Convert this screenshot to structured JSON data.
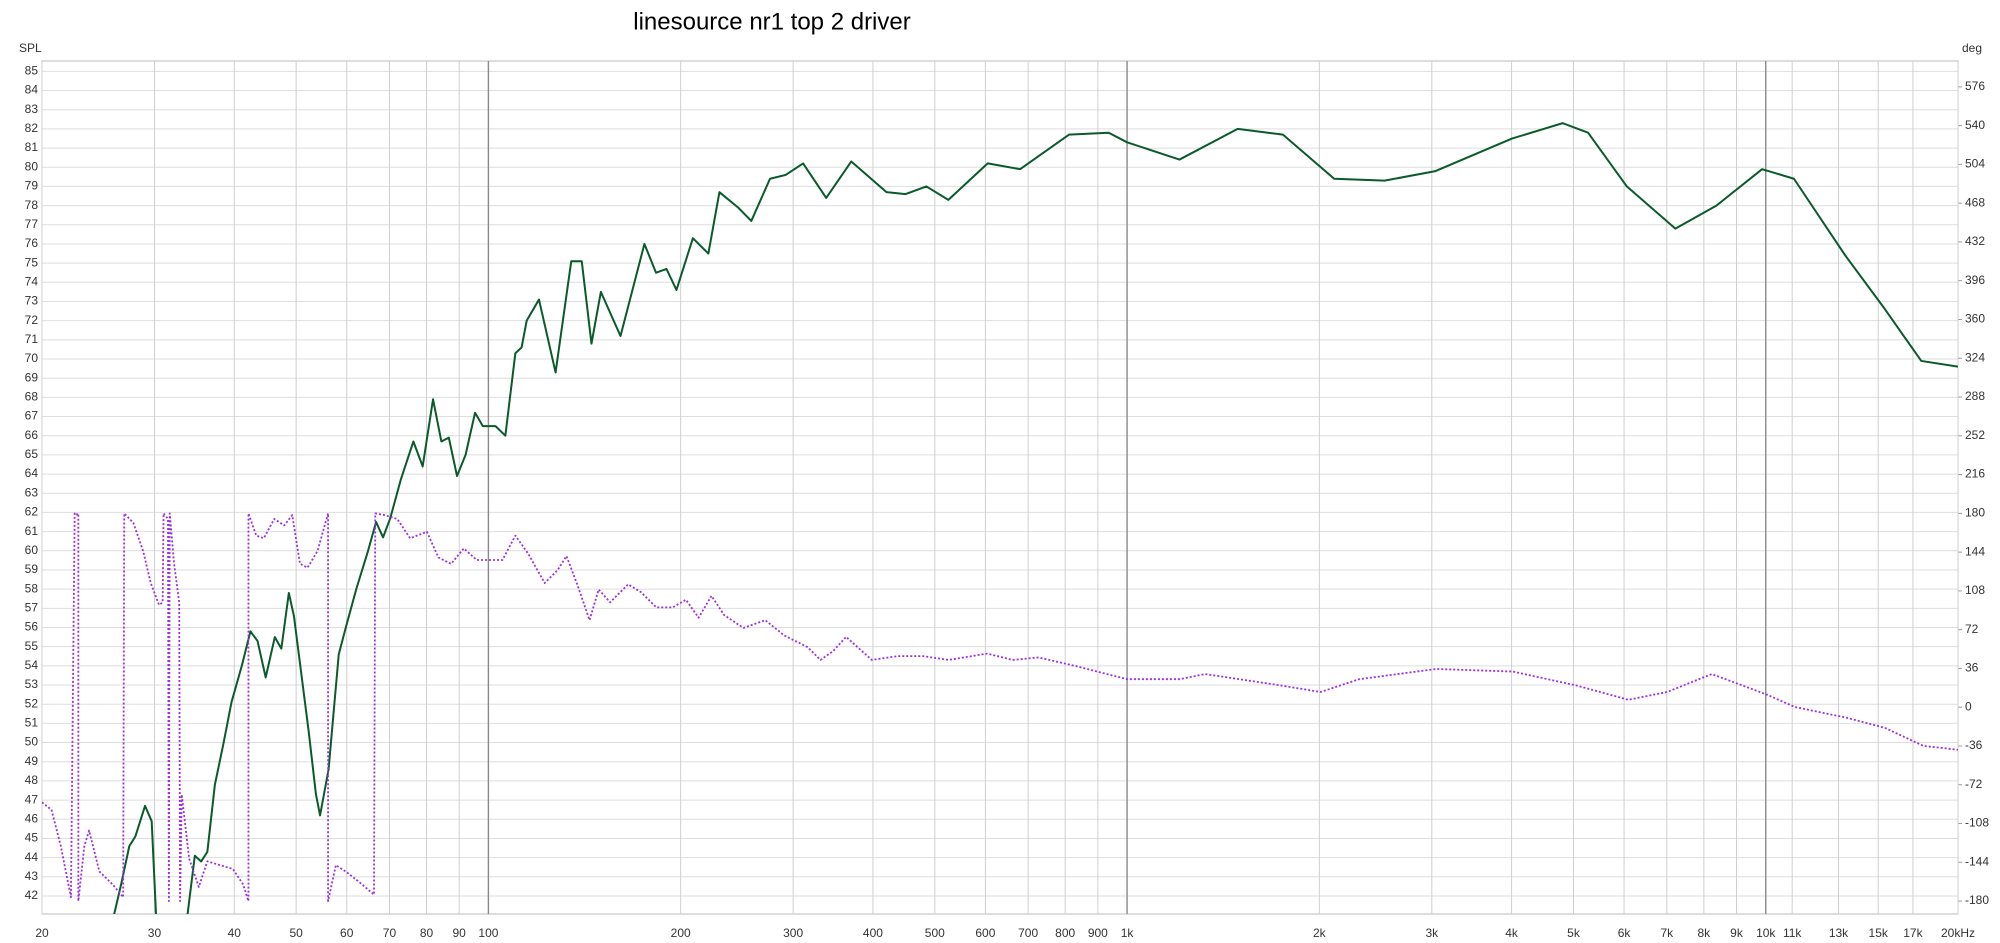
{
  "chart_data": {
    "type": "line",
    "title": "linesource nr1 top 2 driver",
    "ylabel": "SPL",
    "y2label": "deg",
    "xscale": "log",
    "grid": true,
    "xlim": [
      20,
      20000
    ],
    "ylim": [
      41.06,
      85.54
    ],
    "y2lim": [
      -192,
      600
    ],
    "xticks": [
      20,
      30,
      40,
      50,
      60,
      70,
      80,
      90,
      100,
      200,
      300,
      400,
      500,
      600,
      700,
      800,
      900,
      {
        "value": 1000,
        "label": "1k"
      },
      {
        "value": 2000,
        "label": "2k"
      },
      {
        "value": 3000,
        "label": "3k"
      },
      {
        "value": 4000,
        "label": "4k"
      },
      {
        "value": 5000,
        "label": "5k"
      },
      {
        "value": 6000,
        "label": "6k"
      },
      {
        "value": 7000,
        "label": "7k"
      },
      {
        "value": 8000,
        "label": "8k"
      },
      {
        "value": 9000,
        "label": "9k"
      },
      {
        "value": 10000,
        "label": "10k"
      },
      {
        "value": 11000,
        "label": "11k"
      },
      {
        "value": 13000,
        "label": "13k"
      },
      {
        "value": 15000,
        "label": "15k"
      },
      {
        "value": 17000,
        "label": "17k"
      },
      {
        "value": 20000,
        "label": "20kHz"
      }
    ],
    "yticks": [
      42,
      43,
      44,
      45,
      46,
      47,
      48,
      49,
      50,
      51,
      52,
      53,
      54,
      55,
      56,
      57,
      58,
      59,
      60,
      61,
      62,
      63,
      64,
      65,
      66,
      67,
      68,
      69,
      70,
      71,
      72,
      73,
      74,
      75,
      76,
      77,
      78,
      79,
      80,
      81,
      82,
      83,
      84,
      85
    ],
    "y2ticks": [
      -180,
      -144,
      -108,
      -72,
      -36,
      0,
      36,
      72,
      108,
      144,
      180,
      216,
      252,
      288,
      324,
      360,
      396,
      432,
      468,
      504,
      540,
      576
    ],
    "series": [
      {
        "color": "#0a5a2a",
        "style": "solid",
        "x": [
          25.8,
          26.6,
          27.4,
          28.0,
          29.0,
          29.7,
          30.2,
          30.6,
          33.3,
          33.7,
          34.7,
          35.5,
          36.3,
          37.3,
          38.5,
          39.6,
          41.1,
          42.4,
          43.5,
          44.8,
          46.3,
          47.4,
          48.7,
          49.6,
          52.3,
          53.7,
          54.5,
          56.2,
          58.3,
          59.8,
          62.1,
          64.8,
          66.7,
          68.4,
          70.2,
          72.9,
          76.3,
          78.9,
          81.9,
          84.4,
          86.7,
          89.3,
          92.1,
          95.3,
          98.0,
          102.6,
          106.3,
          110.2,
          112.7,
          114.8,
          120,
          127.4,
          134.8,
          140,
          145,
          150,
          161,
          175.5,
          183,
          190,
          197,
          209,
          221,
          230,
          246,
          258,
          276,
          292,
          311,
          338,
          370,
          420,
          450,
          485,
          525,
          605,
          680,
          811,
          936,
          1000,
          1208,
          1490,
          1754,
          2110,
          2530,
          3040,
          4010,
          4810,
          5270,
          6060,
          7220,
          8370,
          9870,
          11070,
          13320,
          15290,
          17520,
          20000
        ],
        "values": [
          40.7,
          42.6,
          44.6,
          45.1,
          46.7,
          45.9,
          40.7,
          38,
          38,
          40.7,
          44.1,
          43.8,
          44.3,
          47.8,
          50.0,
          52.1,
          54.0,
          55.8,
          55.3,
          53.4,
          55.5,
          54.9,
          57.8,
          56.6,
          50.6,
          47.3,
          46.2,
          48.6,
          54.6,
          56.0,
          58.0,
          60.0,
          61.5,
          60.7,
          61.7,
          63.7,
          65.7,
          64.4,
          67.9,
          65.7,
          65.9,
          63.9,
          65.0,
          67.2,
          66.5,
          66.5,
          66.0,
          70.3,
          70.6,
          72.0,
          73.1,
          69.3,
          75.1,
          75.1,
          70.8,
          73.5,
          71.2,
          76.0,
          74.5,
          74.7,
          73.6,
          76.3,
          75.5,
          78.7,
          77.9,
          77.2,
          79.4,
          79.6,
          80.2,
          78.4,
          80.3,
          78.7,
          78.6,
          79.0,
          78.3,
          80.2,
          79.9,
          81.7,
          81.8,
          81.3,
          80.4,
          82.0,
          81.7,
          79.4,
          79.3,
          79.8,
          81.5,
          82.3,
          81.8,
          79.0,
          76.8,
          78.0,
          79.9,
          79.4,
          75.4,
          72.7,
          69.9,
          69.6
        ]
      },
      {
        "color": "#9b30e0",
        "style": "dotted",
        "axis": "y2",
        "x": [
          20,
          20.7,
          21.4,
          22.2,
          22.5,
          22.6,
          22.8,
          22.8,
          23.3,
          23.7,
          24.6,
          25.8,
          26.8,
          26.9,
          27.8,
          28.8,
          29.6,
          30.5,
          30.9,
          31.0,
          31.5,
          31.6,
          31.7,
          32.2,
          32.8,
          32.9,
          33.1,
          34.0,
          35.2,
          36.3,
          38.0,
          39.8,
          41.3,
          42.1,
          42.1,
          43.3,
          44.5,
          46.2,
          47.9,
          49.3,
          50.7,
          52.1,
          54.0,
          56.1,
          56.1,
          57.7,
          59.8,
          62.7,
          66.2,
          66.5,
          68.7,
          72.0,
          75.4,
          80.1,
          83.5,
          87.4,
          91.5,
          95.9,
          99.5,
          105.2,
          110.2,
          115.4,
          122.5,
          128.3,
          132.5,
          137.5,
          144.0,
          148.8,
          155.1,
          165.5,
          173.3,
          183.2,
          194.4,
          203.8,
          213.4,
          223.5,
          234.0,
          250.8,
          271.3,
          290.8,
          316.2,
          331.1,
          346.7,
          363.1,
          398.4,
          437.0,
          479.2,
          525.6,
          604,
          662,
          727,
          835,
          1000,
          1208,
          1325,
          1749,
          2009,
          2308,
          3046,
          4020,
          5066,
          6094,
          7004,
          8234,
          10040,
          11118,
          13376,
          15368,
          17652,
          20000
        ],
        "values": [
          -88.3,
          -95.4,
          -128.8,
          -176.4,
          180,
          178.4,
          180,
          -180,
          -128.8,
          -114.5,
          -152.6,
          -164.5,
          -176.4,
          180,
          171.2,
          145.0,
          115.3,
          95.0,
          97.4,
          180,
          174.8,
          -180,
          180,
          133.1,
          97.4,
          -180,
          -81.2,
          -140.7,
          -166.9,
          -143.1,
          -146.6,
          -150.2,
          -164.5,
          -180,
          180,
          159.3,
          156.9,
          174.8,
          168.8,
          178.4,
          133.1,
          129.6,
          145.0,
          180,
          -180,
          -146.6,
          -152.6,
          -162.1,
          -174.0,
          180,
          178.4,
          174.8,
          156.9,
          162.9,
          139.1,
          133.1,
          147.4,
          136.7,
          136.7,
          136.7,
          159.3,
          142.6,
          115.3,
          127.2,
          140.3,
          115.3,
          80.8,
          109.3,
          97.4,
          114.1,
          106.9,
          92.7,
          92.7,
          99.8,
          83.1,
          103.4,
          85.5,
          73.6,
          80.8,
          66.5,
          55.7,
          43.9,
          52.2,
          65.3,
          43.9,
          47.4,
          47.4,
          43.9,
          49.8,
          43.9,
          46.2,
          37.9,
          26.0,
          26.0,
          30.8,
          20.0,
          14.1,
          26.0,
          35.5,
          33.1,
          20.0,
          6.9,
          14.1,
          30.8,
          11.7,
          0.1,
          -9.7,
          -19.2,
          -35.9,
          -39.5
        ]
      }
    ]
  }
}
